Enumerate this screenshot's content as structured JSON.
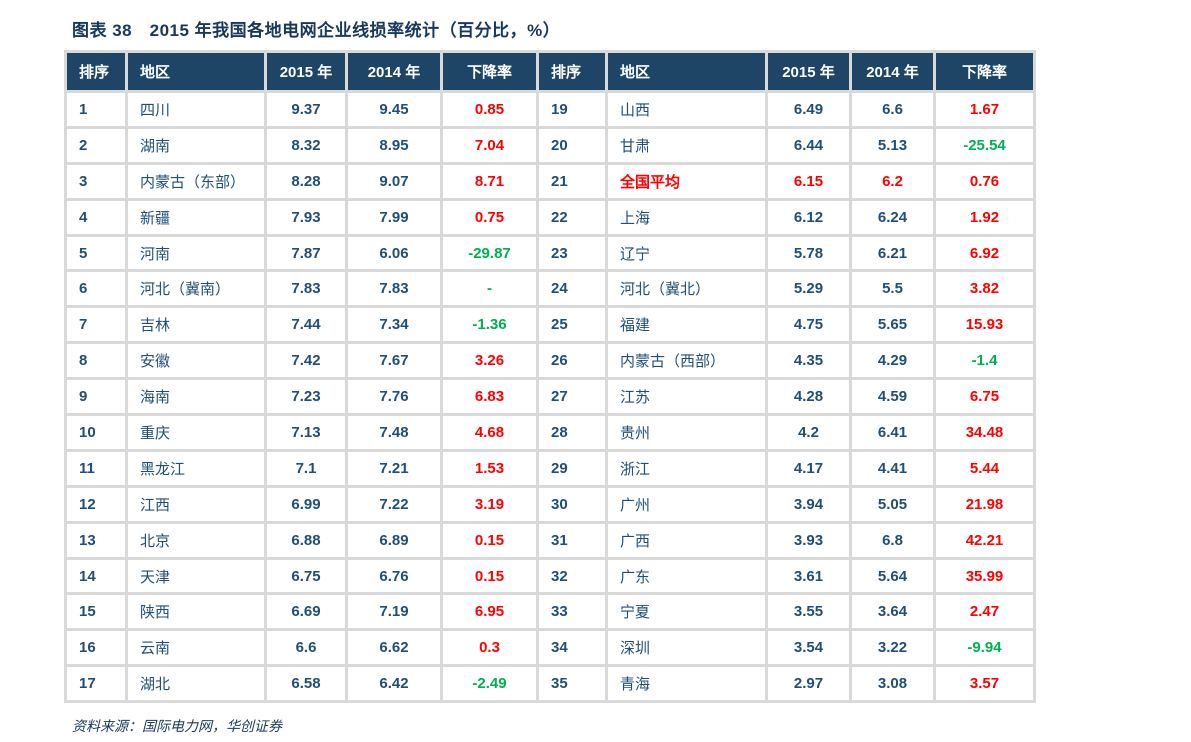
{
  "title": "图表 38　2015 年我国各地电网企业线损率统计（百分比，%）",
  "source": "资料来源：国际电力网，华创证券",
  "colors": {
    "header_bg": "#1E4466",
    "title_text": "#17375E",
    "body_text": "#1F4E79",
    "increase_red": "#FF0000",
    "decrease_green": "#00B050",
    "gridline": "#D9D9D9"
  },
  "table": {
    "header": [
      "排序",
      "地区",
      "2015 年",
      "2014 年",
      "下降率",
      "排序",
      "地区",
      "2015 年",
      "2014 年",
      "下降率"
    ],
    "rows": [
      {
        "left": {
          "rank": "1",
          "region": "四川",
          "y2015": "9.37",
          "y2014": "9.45",
          "decline": "0.85",
          "decline_color": "red"
        },
        "right": {
          "rank": "19",
          "region": "山西",
          "y2015": "6.49",
          "y2014": "6.6",
          "decline": "1.67",
          "decline_color": "red"
        }
      },
      {
        "left": {
          "rank": "2",
          "region": "湖南",
          "y2015": "8.32",
          "y2014": "8.95",
          "decline": "7.04",
          "decline_color": "red"
        },
        "right": {
          "rank": "20",
          "region": "甘肃",
          "y2015": "6.44",
          "y2014": "5.13",
          "decline": "-25.54",
          "decline_color": "green"
        }
      },
      {
        "left": {
          "rank": "3",
          "region": "内蒙古（东部）",
          "y2015": "8.28",
          "y2014": "9.07",
          "decline": "8.71",
          "decline_color": "red"
        },
        "right": {
          "rank": "21",
          "region": "全国平均",
          "y2015": "6.15",
          "y2014": "6.2",
          "decline": "0.76",
          "decline_color": "red",
          "highlight": true
        }
      },
      {
        "left": {
          "rank": "4",
          "region": "新疆",
          "y2015": "7.93",
          "y2014": "7.99",
          "decline": "0.75",
          "decline_color": "red"
        },
        "right": {
          "rank": "22",
          "region": "上海",
          "y2015": "6.12",
          "y2014": "6.24",
          "decline": "1.92",
          "decline_color": "red"
        }
      },
      {
        "left": {
          "rank": "5",
          "region": "河南",
          "y2015": "7.87",
          "y2014": "6.06",
          "decline": "-29.87",
          "decline_color": "green"
        },
        "right": {
          "rank": "23",
          "region": "辽宁",
          "y2015": "5.78",
          "y2014": "6.21",
          "decline": "6.92",
          "decline_color": "red"
        }
      },
      {
        "left": {
          "rank": "6",
          "region": "河北（冀南）",
          "y2015": "7.83",
          "y2014": "7.83",
          "decline": "-",
          "decline_color": "green"
        },
        "right": {
          "rank": "24",
          "region": "河北（冀北）",
          "y2015": "5.29",
          "y2014": "5.5",
          "decline": "3.82",
          "decline_color": "red"
        }
      },
      {
        "left": {
          "rank": "7",
          "region": "吉林",
          "y2015": "7.44",
          "y2014": "7.34",
          "decline": "-1.36",
          "decline_color": "green"
        },
        "right": {
          "rank": "25",
          "region": "福建",
          "y2015": "4.75",
          "y2014": "5.65",
          "decline": "15.93",
          "decline_color": "red"
        }
      },
      {
        "left": {
          "rank": "8",
          "region": "安徽",
          "y2015": "7.42",
          "y2014": "7.67",
          "decline": "3.26",
          "decline_color": "red"
        },
        "right": {
          "rank": "26",
          "region": "内蒙古（西部）",
          "y2015": "4.35",
          "y2014": "4.29",
          "decline": "-1.4",
          "decline_color": "green"
        }
      },
      {
        "left": {
          "rank": "9",
          "region": "海南",
          "y2015": "7.23",
          "y2014": "7.76",
          "decline": "6.83",
          "decline_color": "red"
        },
        "right": {
          "rank": "27",
          "region": "江苏",
          "y2015": "4.28",
          "y2014": "4.59",
          "decline": "6.75",
          "decline_color": "red"
        }
      },
      {
        "left": {
          "rank": "10",
          "region": "重庆",
          "y2015": "7.13",
          "y2014": "7.48",
          "decline": "4.68",
          "decline_color": "red"
        },
        "right": {
          "rank": "28",
          "region": "贵州",
          "y2015": "4.2",
          "y2014": "6.41",
          "decline": "34.48",
          "decline_color": "red"
        }
      },
      {
        "left": {
          "rank": "11",
          "region": "黑龙江",
          "y2015": "7.1",
          "y2014": "7.21",
          "decline": "1.53",
          "decline_color": "red"
        },
        "right": {
          "rank": "29",
          "region": "浙江",
          "y2015": "4.17",
          "y2014": "4.41",
          "decline": "5.44",
          "decline_color": "red"
        }
      },
      {
        "left": {
          "rank": "12",
          "region": "江西",
          "y2015": "6.99",
          "y2014": "7.22",
          "decline": "3.19",
          "decline_color": "red"
        },
        "right": {
          "rank": "30",
          "region": "广州",
          "y2015": "3.94",
          "y2014": "5.05",
          "decline": "21.98",
          "decline_color": "red"
        }
      },
      {
        "left": {
          "rank": "13",
          "region": "北京",
          "y2015": "6.88",
          "y2014": "6.89",
          "decline": "0.15",
          "decline_color": "red"
        },
        "right": {
          "rank": "31",
          "region": "广西",
          "y2015": "3.93",
          "y2014": "6.8",
          "decline": "42.21",
          "decline_color": "red"
        }
      },
      {
        "left": {
          "rank": "14",
          "region": "天津",
          "y2015": "6.75",
          "y2014": "6.76",
          "decline": "0.15",
          "decline_color": "red"
        },
        "right": {
          "rank": "32",
          "region": "广东",
          "y2015": "3.61",
          "y2014": "5.64",
          "decline": "35.99",
          "decline_color": "red"
        }
      },
      {
        "left": {
          "rank": "15",
          "region": "陕西",
          "y2015": "6.69",
          "y2014": "7.19",
          "decline": "6.95",
          "decline_color": "red"
        },
        "right": {
          "rank": "33",
          "region": "宁夏",
          "y2015": "3.55",
          "y2014": "3.64",
          "decline": "2.47",
          "decline_color": "red"
        }
      },
      {
        "left": {
          "rank": "16",
          "region": "云南",
          "y2015": "6.6",
          "y2014": "6.62",
          "decline": "0.3",
          "decline_color": "red"
        },
        "right": {
          "rank": "34",
          "region": "深圳",
          "y2015": "3.54",
          "y2014": "3.22",
          "decline": "-9.94",
          "decline_color": "green"
        }
      },
      {
        "left": {
          "rank": "17",
          "region": "湖北",
          "y2015": "6.58",
          "y2014": "6.42",
          "decline": "-2.49",
          "decline_color": "green"
        },
        "right": {
          "rank": "35",
          "region": "青海",
          "y2015": "2.97",
          "y2014": "3.08",
          "decline": "3.57",
          "decline_color": "red"
        }
      }
    ]
  }
}
